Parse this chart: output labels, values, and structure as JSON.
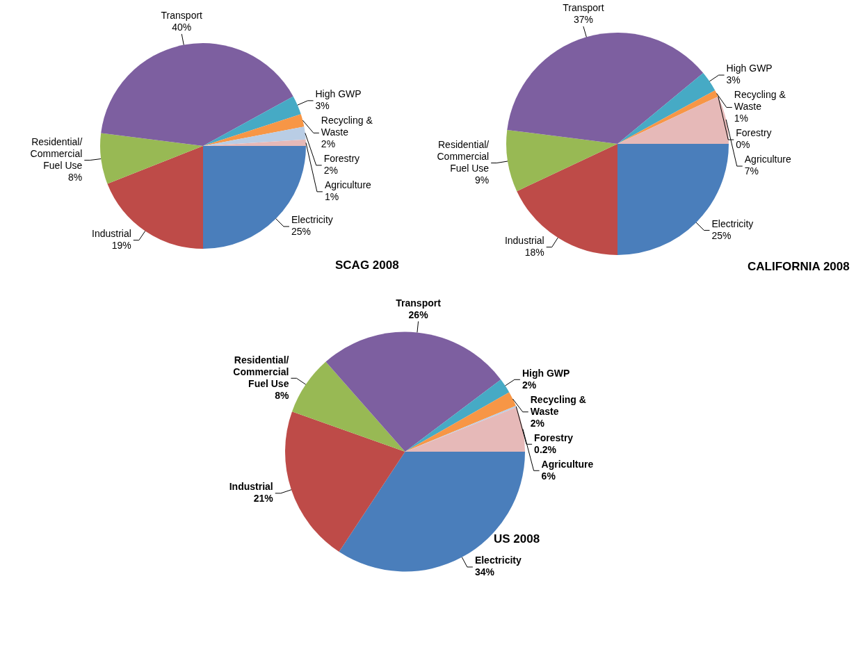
{
  "chart_data": [
    {
      "type": "pie",
      "title": "SCAG 2008",
      "categories": [
        "Electricity",
        "Industrial",
        "Residential/Commercial Fuel Use",
        "Transport",
        "High GWP",
        "Recycling & Waste",
        "Forestry",
        "Agriculture"
      ],
      "values": [
        25,
        19,
        8,
        40,
        3,
        2,
        2,
        1
      ],
      "value_labels": [
        "25%",
        "19%",
        "8%",
        "40%",
        "3%",
        "2%",
        "2%",
        "1%"
      ],
      "colors": [
        "#4a7ebb",
        "#be4b48",
        "#98b954",
        "#7d5fa0",
        "#46aac5",
        "#f79646",
        "#b9cde5",
        "#e6b9b8"
      ],
      "legend": false
    },
    {
      "type": "pie",
      "title": "CALIFORNIA 2008",
      "categories": [
        "Electricity",
        "Industrial",
        "Residential/Commercial Fuel Use",
        "Transport",
        "High GWP",
        "Recycling & Waste",
        "Forestry",
        "Agriculture"
      ],
      "values": [
        25,
        18,
        9,
        37,
        3,
        1,
        0,
        7
      ],
      "value_labels": [
        "25%",
        "18%",
        "9%",
        "37%",
        "3%",
        "1%",
        "0%",
        "7%"
      ],
      "colors": [
        "#4a7ebb",
        "#be4b48",
        "#98b954",
        "#7d5fa0",
        "#46aac5",
        "#f79646",
        "#b9cde5",
        "#e6b9b8"
      ],
      "legend": false
    },
    {
      "type": "pie",
      "title": "US 2008",
      "categories": [
        "Electricity",
        "Industrial",
        "Residential/Commercial Fuel Use",
        "Transport",
        "High GWP",
        "Recycling & Waste",
        "Forestry",
        "Agriculture"
      ],
      "values": [
        34,
        21,
        8,
        26,
        2,
        2,
        0.2,
        6
      ],
      "value_labels": [
        "34%",
        "21%",
        "8%",
        "26%",
        "2%",
        "2%",
        "0.2%",
        "6%"
      ],
      "colors": [
        "#4a7ebb",
        "#be4b48",
        "#98b954",
        "#7d5fa0",
        "#46aac5",
        "#f79646",
        "#b9cde5",
        "#e6b9b8"
      ],
      "legend": false
    }
  ]
}
